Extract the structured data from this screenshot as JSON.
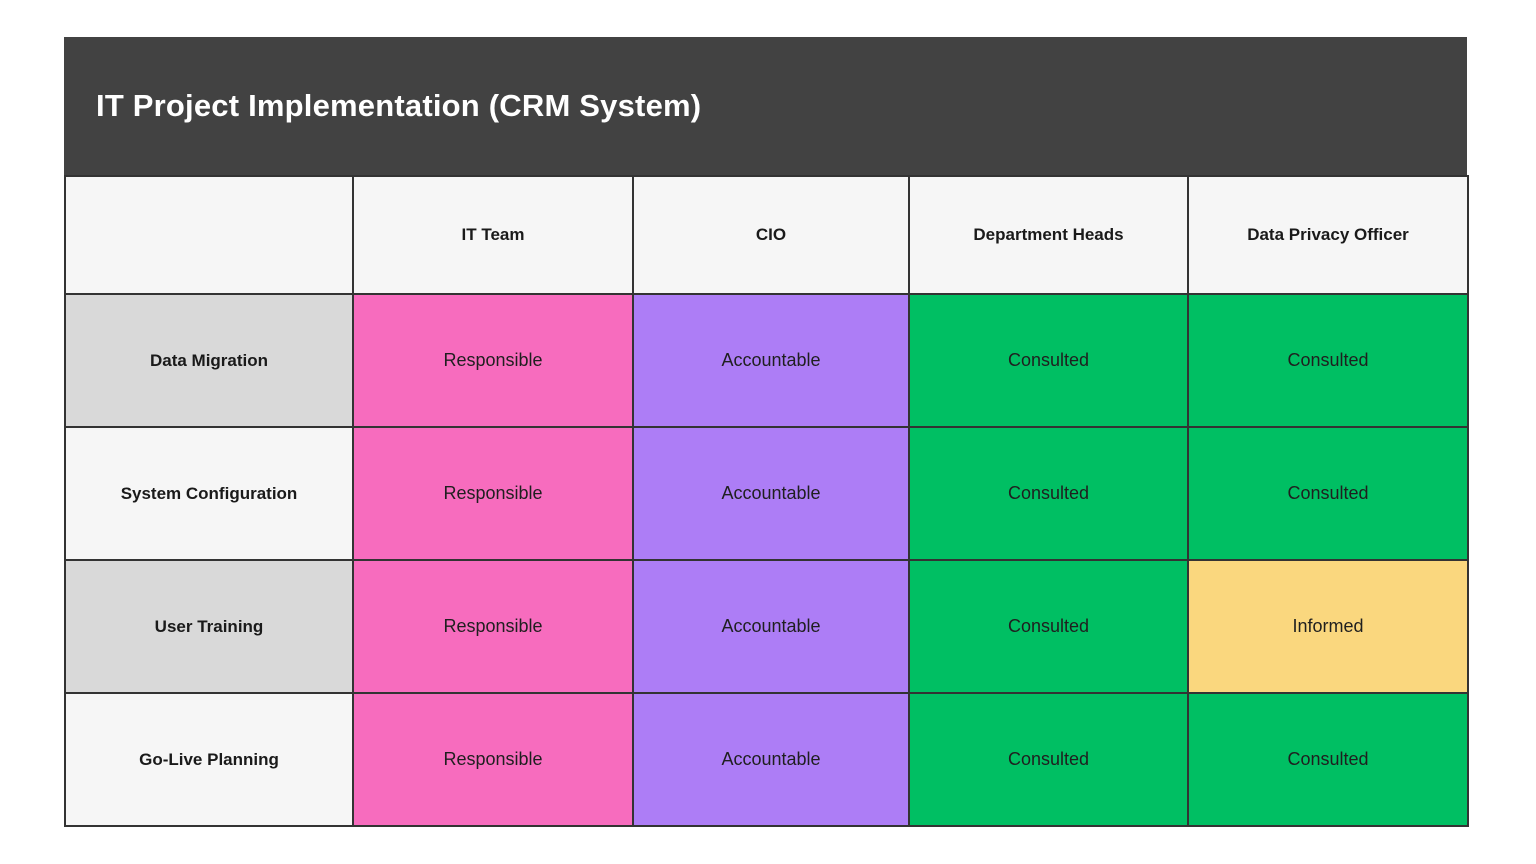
{
  "header": {
    "title": "IT Project Implementation (CRM System)",
    "background": "#424242",
    "text_color": "#ffffff"
  },
  "matrix": {
    "corner_label": "",
    "columns": [
      "IT Team",
      "CIO",
      "Department Heads",
      "Data Privacy Officer"
    ],
    "rows": [
      {
        "label": "Data Migration",
        "cells": [
          "Responsible",
          "Accountable",
          "Consulted",
          "Consulted"
        ]
      },
      {
        "label": "System Configuration",
        "cells": [
          "Responsible",
          "Accountable",
          "Consulted",
          "Consulted"
        ]
      },
      {
        "label": "User Training",
        "cells": [
          "Responsible",
          "Accountable",
          "Consulted",
          "Informed"
        ]
      },
      {
        "label": "Go-Live Planning",
        "cells": [
          "Responsible",
          "Accountable",
          "Consulted",
          "Consulted"
        ]
      }
    ],
    "role_colors": {
      "Responsible": "#F76CBE",
      "Accountable": "#AD7DF6",
      "Consulted": "#00BF63",
      "Informed": "#FAD77E"
    },
    "row_label_backgrounds": [
      "#D9D9D9",
      "#F6F6F6",
      "#D9D9D9",
      "#F6F6F6"
    ],
    "header_background": "#F6F6F6",
    "border_color": "#333333"
  }
}
